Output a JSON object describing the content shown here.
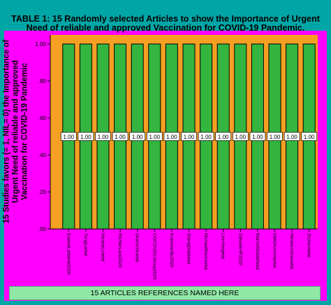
{
  "chart_data": {
    "type": "bar",
    "title_lines": [
      "TABLE 1: 15 Randomly selected Articles to show the Importance of Urgent",
      "Need of reliable and approved Vaccination for COVID-19 Pandemic."
    ],
    "ylabel": "15 Studies favors (= 1, NIL= 0) the Importance of Urgent Need of reliable and approved Vaccination for COVID-19 Pandemic",
    "xlabel": "15 ARTICLES REFERENCES NAMED HERE",
    "categories": [
      "EwaneLaliberte2020",
      "TungLeetal",
      "NicolasLuietal",
      "RichterLane2020",
      "GrahmYanetal",
      "COCOVIDLGroup2020",
      "KrammerBu2020",
      "ShengDaidietal",
      "MichaelMannnetal",
      "LinnYangetal",
      "SalvadoriP2020",
      "MarinshDoddhetal",
      "DebOrunAmyetal",
      "HeneerAshianetal",
      "ZhiXenhetal"
    ],
    "values": [
      1,
      1,
      1,
      1,
      1,
      1,
      1,
      1,
      1,
      1,
      1,
      1,
      1,
      1,
      1
    ],
    "data_labels": [
      "1.00",
      "1.00",
      "1.00",
      "1.00",
      "1.00",
      "1.00",
      "1.00",
      "1.00",
      "1.00",
      "1.00",
      "1.00",
      "1.00",
      "1.00",
      "1.00",
      "1.00"
    ],
    "yticks": [
      0,
      0.2,
      0.4,
      0.6,
      0.8,
      1.0
    ],
    "ytick_labels": [
      ".00",
      ".20",
      ".40",
      ".60",
      ".80",
      "1.00"
    ],
    "ylim": [
      0,
      1.0
    ],
    "grid": false,
    "colors": {
      "outer_border": "#00a6a6",
      "background": "#ff00ff",
      "plot_area": "#f5a023",
      "bar_fill": "#33b540",
      "bar_edge": "#000000",
      "xlabel_box": "#90e8a6"
    }
  }
}
